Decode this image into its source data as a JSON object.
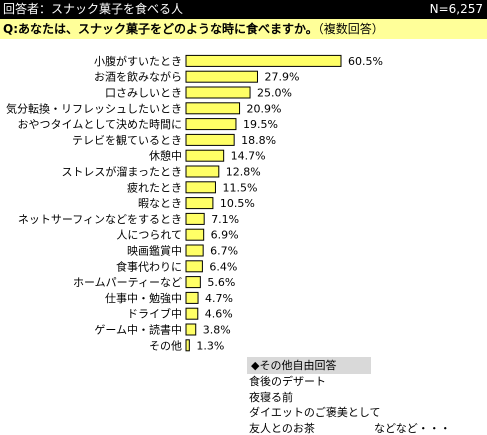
{
  "header": {
    "title": "回答者：スナック菓子を食べる人",
    "n": "N=6,257"
  },
  "question": {
    "text": "Q:あなたは、スナック菓子をどのような時に食べますか。",
    "note": "（複数回答）"
  },
  "colors": {
    "bar_fill": "#ffff66",
    "bar_stroke": "#000000",
    "header_bg": "#000000",
    "question_bg": "#ffff99"
  },
  "chart_data": {
    "type": "bar",
    "orientation": "horizontal",
    "unit": "%",
    "categories": [
      "小腹がすいたとき",
      "お酒を飲みながら",
      "口さみしいとき",
      "気分転換・リフレッシュしたいとき",
      "おやつタイムとして決めた時間に",
      "テレビを観ているとき",
      "休憩中",
      "ストレスが溜まったとき",
      "疲れたとき",
      "暇なとき",
      "ネットサーフィンなどをするとき",
      "人につられて",
      "映画鑑賞中",
      "食事代わりに",
      "ホームパーティーなど",
      "仕事中・勉強中",
      "ドライブ中",
      "ゲーム中・読書中",
      "その他"
    ],
    "values": [
      60.5,
      27.9,
      25.0,
      20.9,
      19.5,
      18.8,
      14.7,
      12.8,
      11.5,
      10.5,
      7.1,
      6.9,
      6.7,
      6.4,
      5.6,
      4.7,
      4.6,
      3.8,
      1.3
    ],
    "value_labels": [
      "60.5%",
      "27.9%",
      "25.0%",
      "20.9%",
      "19.5%",
      "18.8%",
      "14.7%",
      "12.8%",
      "11.5%",
      "10.5%",
      "7.1%",
      "6.9%",
      "6.7%",
      "6.4%",
      "5.6%",
      "4.7%",
      "4.6%",
      "3.8%",
      "1.3%"
    ]
  },
  "free_answers": {
    "title": "◆その他自由回答",
    "items": [
      "食後のデザート",
      "夜寝る前",
      "ダイエットのご褒美として",
      "友人とのお茶"
    ],
    "etc": "などなど・・・"
  }
}
